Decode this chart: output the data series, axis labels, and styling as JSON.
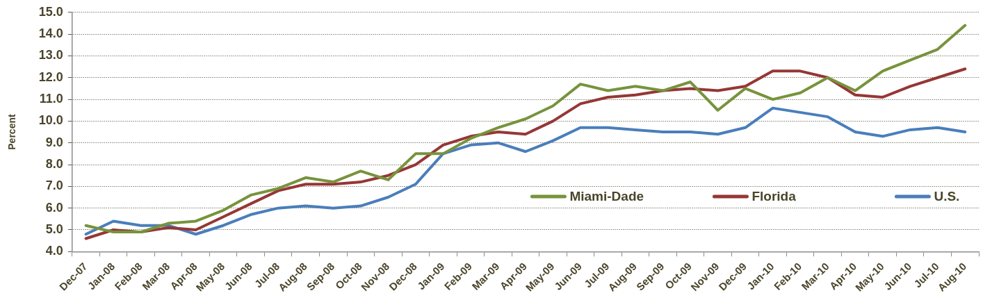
{
  "chart_data": {
    "type": "line",
    "ylabel": "Percent",
    "categories": [
      "Dec-07",
      "Jan-08",
      "Feb-08",
      "Mar-08",
      "Apr-08",
      "May-08",
      "Jun-08",
      "Jul-08",
      "Aug-08",
      "Sep-08",
      "Oct-08",
      "Nov-08",
      "Dec-08",
      "Jan-09",
      "Feb-09",
      "Mar-09",
      "Apr-09",
      "May-09",
      "Jun-09",
      "Jul-09",
      "Aug-09",
      "Sep-09",
      "Oct-09",
      "Nov-09",
      "Dec-09",
      "Jan-10",
      "Feb-10",
      "Mar-10",
      "Apr-10",
      "May-10",
      "Jun-10",
      "Jul-10",
      "Aug-10"
    ],
    "series": [
      {
        "name": "Miami-Dade",
        "color": "#77933c",
        "values": [
          5.2,
          4.9,
          4.9,
          5.3,
          5.4,
          5.9,
          6.6,
          6.9,
          7.4,
          7.2,
          7.7,
          7.3,
          8.5,
          8.5,
          9.2,
          9.7,
          10.1,
          10.7,
          11.7,
          11.4,
          11.6,
          11.4,
          11.8,
          10.5,
          11.5,
          11.0,
          11.3,
          12.0,
          11.4,
          12.3,
          12.8,
          13.3,
          14.4
        ]
      },
      {
        "name": "Florida",
        "color": "#953735",
        "values": [
          4.6,
          5.0,
          4.9,
          5.1,
          5.0,
          5.6,
          6.2,
          6.8,
          7.1,
          7.1,
          7.2,
          7.5,
          8.0,
          8.9,
          9.3,
          9.5,
          9.4,
          10.0,
          10.8,
          11.1,
          11.2,
          11.4,
          11.5,
          11.4,
          11.6,
          12.3,
          12.3,
          12.0,
          11.2,
          11.1,
          11.6,
          12.0,
          12.4
        ]
      },
      {
        "name": "U.S.",
        "color": "#4a7ebb",
        "values": [
          4.8,
          5.4,
          5.2,
          5.2,
          4.8,
          5.2,
          5.7,
          6.0,
          6.1,
          6.0,
          6.1,
          6.5,
          7.1,
          8.5,
          8.9,
          9.0,
          8.6,
          9.1,
          9.7,
          9.7,
          9.6,
          9.5,
          9.5,
          9.4,
          9.7,
          10.6,
          10.4,
          10.2,
          9.5,
          9.3,
          9.6,
          9.7,
          9.5
        ]
      }
    ],
    "ylim": [
      4,
      15
    ],
    "yticks": [
      {
        "value": 4,
        "label": "4.0"
      },
      {
        "value": 5,
        "label": "5.0"
      },
      {
        "value": 6,
        "label": "6.0"
      },
      {
        "value": 7,
        "label": "7.0"
      },
      {
        "value": 8,
        "label": "8.0"
      },
      {
        "value": 9,
        "label": "9.0"
      },
      {
        "value": 10,
        "label": "10.0"
      },
      {
        "value": 11,
        "label": "11.0"
      },
      {
        "value": 12,
        "label": "12.0"
      },
      {
        "value": 13,
        "label": "13.0"
      },
      {
        "value": 14,
        "label": "14.0"
      },
      {
        "value": 15,
        "label": "15.0"
      }
    ],
    "grid": "y",
    "legend": "bottom right",
    "marker": "none",
    "line_style": "solid"
  }
}
